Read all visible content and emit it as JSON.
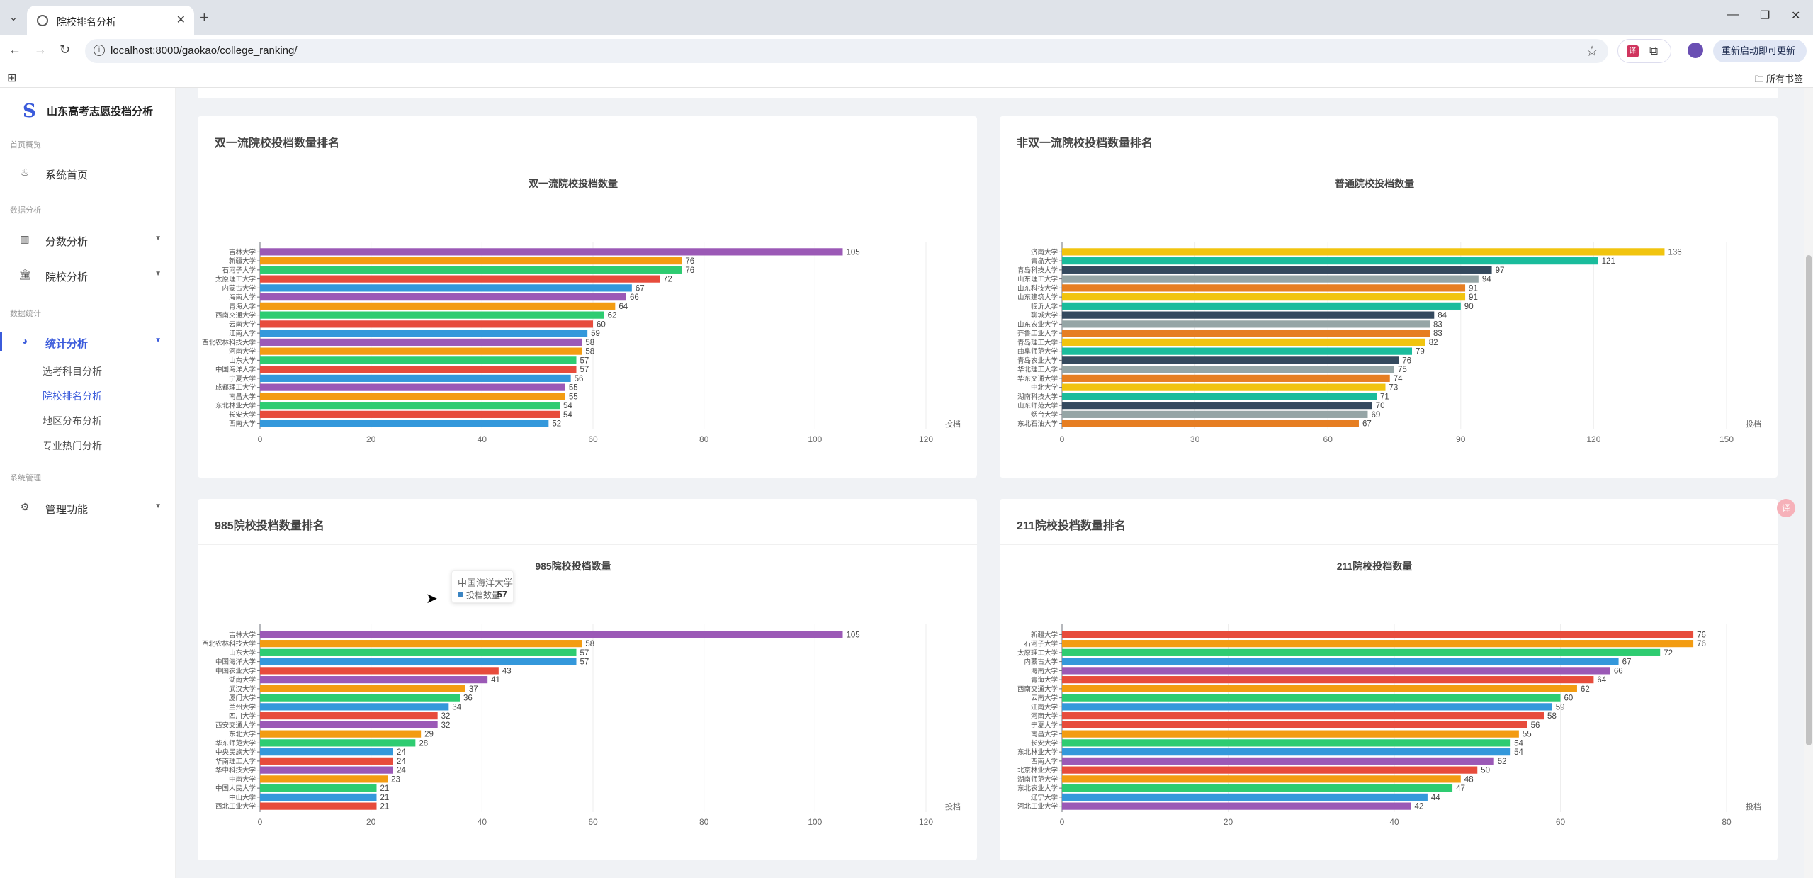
{
  "browser": {
    "tab_title": "院校排名分析",
    "url": "localhost:8000/gaokao/college_ranking/",
    "update_label": "重新启动即可更新",
    "bookmarks_label": "所有书签"
  },
  "sidebar": {
    "logo_mark": "S",
    "logo_text": "山东高考志愿投档分析",
    "sections": {
      "home": "首页概览",
      "data_analysis": "数据分析",
      "data_stats": "数据统计",
      "system": "系统管理"
    },
    "items": {
      "home": "系统首页",
      "score": "分数分析",
      "college": "院校分析",
      "stats": "统计分析",
      "admin": "管理功能"
    },
    "subitems": [
      "选考科目分析",
      "院校排名分析",
      "地区分布分析",
      "专业热门分析"
    ]
  },
  "cards": {
    "double_first": "双一流院校投档数量排名",
    "non_double": "非双一流院校投档数量排名",
    "c985": "985院校投档数量排名",
    "c211": "211院校投档数量排名"
  },
  "tooltip": {
    "title": "中国海洋大学",
    "series": "投档数量",
    "value": "57"
  },
  "chart_data": [
    {
      "type": "bar",
      "title": "双一流院校投档数量",
      "unit": "投档",
      "xlim": [
        0,
        120
      ],
      "ticks": [
        0,
        20,
        40,
        60,
        80,
        100,
        120
      ],
      "categories": [
        "吉林大学",
        "新疆大学",
        "石河子大学",
        "太原理工大学",
        "内蒙古大学",
        "海南大学",
        "青海大学",
        "西南交通大学",
        "云南大学",
        "江南大学",
        "西北农林科技大学",
        "河南大学",
        "山东大学",
        "中国海洋大学",
        "宁夏大学",
        "成都理工大学",
        "南昌大学",
        "东北林业大学",
        "长安大学",
        "西南大学"
      ],
      "values": [
        105,
        76,
        76,
        72,
        67,
        66,
        64,
        62,
        60,
        59,
        58,
        58,
        57,
        57,
        56,
        55,
        55,
        54,
        54,
        52
      ],
      "colors": [
        "#9b59b6",
        "#f39c12",
        "#2ecc71",
        "#e74c3c",
        "#3498db",
        "#9b59b6",
        "#f39c12",
        "#2ecc71",
        "#e74c3c",
        "#3498db",
        "#9b59b6",
        "#f39c12",
        "#2ecc71",
        "#e74c3c",
        "#3498db",
        "#9b59b6",
        "#f39c12",
        "#2ecc71",
        "#e74c3c",
        "#3498db"
      ]
    },
    {
      "type": "bar",
      "title": "普通院校投档数量",
      "unit": "投档",
      "xlim": [
        0,
        150
      ],
      "ticks": [
        0,
        30,
        60,
        90,
        120,
        150
      ],
      "categories": [
        "济南大学",
        "青岛大学",
        "青岛科技大学",
        "山东理工大学",
        "山东科技大学",
        "山东建筑大学",
        "临沂大学",
        "聊城大学",
        "山东农业大学",
        "齐鲁工业大学",
        "青岛理工大学",
        "曲阜师范大学",
        "青岛农业大学",
        "华北理工大学",
        "华东交通大学",
        "中北大学",
        "湖南科技大学",
        "山东师范大学",
        "烟台大学",
        "东北石油大学"
      ],
      "values": [
        136,
        121,
        97,
        94,
        91,
        91,
        90,
        84,
        83,
        83,
        82,
        79,
        76,
        75,
        74,
        73,
        71,
        70,
        69,
        67
      ],
      "colors": [
        "#f1c40f",
        "#1abc9c",
        "#34495e",
        "#95a5a6",
        "#e67e22",
        "#f1c40f",
        "#1abc9c",
        "#34495e",
        "#95a5a6",
        "#e67e22",
        "#f1c40f",
        "#1abc9c",
        "#34495e",
        "#95a5a6",
        "#e67e22",
        "#f1c40f",
        "#1abc9c",
        "#34495e",
        "#95a5a6",
        "#e67e22"
      ]
    },
    {
      "type": "bar",
      "title": "985院校投档数量",
      "unit": "投档",
      "xlim": [
        0,
        120
      ],
      "ticks": [
        0,
        20,
        40,
        60,
        80,
        100,
        120
      ],
      "categories": [
        "吉林大学",
        "西北农林科技大学",
        "山东大学",
        "中国海洋大学",
        "中国农业大学",
        "湖南大学",
        "武汉大学",
        "厦门大学",
        "兰州大学",
        "四川大学",
        "西安交通大学",
        "东北大学",
        "华东师范大学",
        "中央民族大学",
        "华南理工大学",
        "华中科技大学",
        "中南大学",
        "中国人民大学",
        "中山大学",
        "西北工业大学"
      ],
      "values": [
        105,
        58,
        57,
        57,
        43,
        41,
        37,
        36,
        34,
        32,
        32,
        29,
        28,
        24,
        24,
        24,
        23,
        21,
        21,
        21
      ],
      "colors": [
        "#9b59b6",
        "#f39c12",
        "#2ecc71",
        "#3498db",
        "#e74c3c",
        "#9b59b6",
        "#f39c12",
        "#2ecc71",
        "#3498db",
        "#e74c3c",
        "#9b59b6",
        "#f39c12",
        "#2ecc71",
        "#3498db",
        "#e74c3c",
        "#9b59b6",
        "#f39c12",
        "#2ecc71",
        "#3498db",
        "#e74c3c"
      ]
    },
    {
      "type": "bar",
      "title": "211院校投档数量",
      "unit": "投档",
      "xlim": [
        0,
        80
      ],
      "ticks": [
        0,
        20,
        40,
        60,
        80
      ],
      "categories": [
        "新疆大学",
        "石河子大学",
        "太原理工大学",
        "内蒙古大学",
        "海南大学",
        "青海大学",
        "西南交通大学",
        "云南大学",
        "江南大学",
        "河南大学",
        "宁夏大学",
        "南昌大学",
        "长安大学",
        "东北林业大学",
        "西南大学",
        "北京林业大学",
        "湖南师范大学",
        "东北农业大学",
        "辽宁大学",
        "河北工业大学"
      ],
      "values": [
        76,
        76,
        72,
        67,
        66,
        64,
        62,
        60,
        59,
        58,
        56,
        55,
        54,
        54,
        52,
        50,
        48,
        47,
        44,
        42
      ],
      "colors": [
        "#e74c3c",
        "#f39c12",
        "#2ecc71",
        "#3498db",
        "#9b59b6",
        "#e74c3c",
        "#f39c12",
        "#2ecc71",
        "#3498db",
        "#e74c3c",
        "#e74c3c",
        "#f39c12",
        "#2ecc71",
        "#3498db",
        "#9b59b6",
        "#e74c3c",
        "#f39c12",
        "#2ecc71",
        "#3498db",
        "#9b59b6"
      ]
    }
  ]
}
